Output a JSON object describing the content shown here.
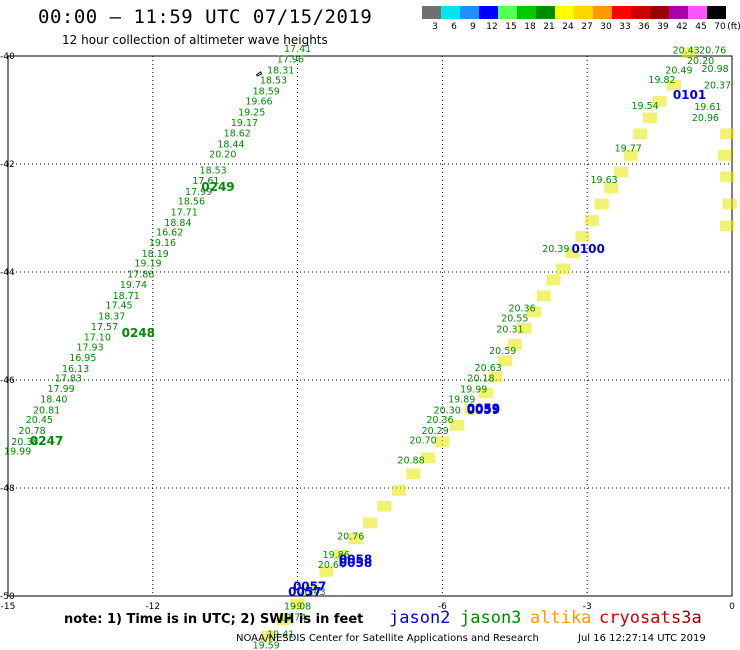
{
  "header": {
    "title": "00:00 – 11:59 UTC 07/15/2019",
    "subtitle": "12 hour collection of altimeter wave heights"
  },
  "colorbar": {
    "unit": "(ft)",
    "bins": [
      {
        "label": "3",
        "color": "#707070"
      },
      {
        "label": "6",
        "color": "#00e5ee"
      },
      {
        "label": "9",
        "color": "#1e90ff"
      },
      {
        "label": "12",
        "color": "#0000ff"
      },
      {
        "label": "15",
        "color": "#55ff55"
      },
      {
        "label": "18",
        "color": "#00c800"
      },
      {
        "label": "21",
        "color": "#008c00"
      },
      {
        "label": "24",
        "color": "#ffff00"
      },
      {
        "label": "27",
        "color": "#ffd700"
      },
      {
        "label": "30",
        "color": "#ff9900"
      },
      {
        "label": "33",
        "color": "#ff0000"
      },
      {
        "label": "36",
        "color": "#cc0000"
      },
      {
        "label": "39",
        "color": "#990000"
      },
      {
        "label": "42",
        "color": "#aa00aa"
      },
      {
        "label": "45",
        "color": "#ff55ff"
      },
      {
        "label": "70",
        "color": "#000000"
      }
    ]
  },
  "axes": {
    "lon_labels": [
      "-15",
      "-12",
      "-9",
      "-6",
      "-3",
      "0"
    ],
    "lat_labels": [
      "-40",
      "-42",
      "-44",
      "-46",
      "-48",
      "-50"
    ]
  },
  "pass_times": [
    {
      "text": "0249",
      "sat": "jason3",
      "lon": -10.65,
      "lat": -42.5
    },
    {
      "text": "0248",
      "sat": "jason3",
      "lon": -12.3,
      "lat": -45.2
    },
    {
      "text": "0247",
      "sat": "jason3",
      "lon": -14.2,
      "lat": -47.2
    },
    {
      "text": "0100",
      "sat": "jason2",
      "lon": -2.98,
      "lat": -43.65
    },
    {
      "text": "0101",
      "sat": "jason2",
      "lon": -0.88,
      "lat": -40.8
    },
    {
      "text": "0059",
      "sat": "jason2",
      "lon": -5.15,
      "lat": -46.6
    },
    {
      "text": "0059",
      "sat": "jason2",
      "lon": -5.15,
      "lat": -46.63
    },
    {
      "text": "0058",
      "sat": "jason2",
      "lon": -7.8,
      "lat": -49.4
    },
    {
      "text": "0058",
      "sat": "jason2",
      "lon": -7.8,
      "lat": -49.46
    },
    {
      "text": "0057",
      "sat": "jason2",
      "lon": -8.75,
      "lat": -49.9
    },
    {
      "text": "0057",
      "sat": "jason2",
      "lon": -8.85,
      "lat": -50.0
    }
  ],
  "green_track": [
    {
      "v": "17.41",
      "lon": -9.0,
      "lat": -39.93
    },
    {
      "v": "17.96",
      "lon": -9.15,
      "lat": -40.12
    },
    {
      "v": "18.31",
      "lon": -9.35,
      "lat": -40.32
    },
    {
      "v": "18.53",
      "lon": -9.5,
      "lat": -40.51
    },
    {
      "v": "18.59",
      "lon": -9.65,
      "lat": -40.71
    },
    {
      "v": "19.66",
      "lon": -9.8,
      "lat": -40.9
    },
    {
      "v": "19.25",
      "lon": -9.95,
      "lat": -41.1
    },
    {
      "v": "19.17",
      "lon": -10.1,
      "lat": -41.3
    },
    {
      "v": "18.62",
      "lon": -10.25,
      "lat": -41.49
    },
    {
      "v": "18.44",
      "lon": -10.38,
      "lat": -41.69
    },
    {
      "v": "20.20",
      "lon": -10.55,
      "lat": -41.88
    },
    {
      "v": "18.53",
      "lon": -10.75,
      "lat": -42.18
    },
    {
      "v": "17.61",
      "lon": -10.9,
      "lat": -42.37
    },
    {
      "v": "17.99",
      "lon": -11.05,
      "lat": -42.57
    },
    {
      "v": "18.56",
      "lon": -11.2,
      "lat": -42.75
    },
    {
      "v": "17.71",
      "lon": -11.35,
      "lat": -42.95
    },
    {
      "v": "18.84",
      "lon": -11.48,
      "lat": -43.15
    },
    {
      "v": "16.62",
      "lon": -11.65,
      "lat": -43.32
    },
    {
      "v": "19.16",
      "lon": -11.8,
      "lat": -43.52
    },
    {
      "v": "18.19",
      "lon": -11.95,
      "lat": -43.72
    },
    {
      "v": "19.19",
      "lon": -12.1,
      "lat": -43.9
    },
    {
      "v": "17.86",
      "lon": -12.25,
      "lat": -44.1
    },
    {
      "v": "19.74",
      "lon": -12.4,
      "lat": -44.3
    },
    {
      "v": "18.71",
      "lon": -12.55,
      "lat": -44.5
    },
    {
      "v": "17.45",
      "lon": -12.7,
      "lat": -44.68
    },
    {
      "v": "18.37",
      "lon": -12.85,
      "lat": -44.88
    },
    {
      "v": "17.57",
      "lon": -13.0,
      "lat": -45.07
    },
    {
      "v": "17.10",
      "lon": -13.15,
      "lat": -45.27
    },
    {
      "v": "17.93",
      "lon": -13.3,
      "lat": -45.45
    },
    {
      "v": "16.95",
      "lon": -13.45,
      "lat": -45.65
    },
    {
      "v": "16.13",
      "lon": -13.6,
      "lat": -45.85
    },
    {
      "v": "17.83",
      "lon": -13.75,
      "lat": -46.03
    },
    {
      "v": "17.99",
      "lon": -13.9,
      "lat": -46.22
    },
    {
      "v": "18.40",
      "lon": -14.05,
      "lat": -46.42
    },
    {
      "v": "20.81",
      "lon": -14.2,
      "lat": -46.62
    },
    {
      "v": "20.45",
      "lon": -14.35,
      "lat": -46.8
    },
    {
      "v": "20.78",
      "lon": -14.5,
      "lat": -47.0
    },
    {
      "v": "20.38",
      "lon": -14.65,
      "lat": -47.2
    },
    {
      "v": "19.99",
      "lon": -14.8,
      "lat": -47.38
    }
  ],
  "jason2_track": [
    {
      "v": "20.43",
      "lon": -0.95,
      "lat": -39.95
    },
    {
      "v": "20.76",
      "lon": -0.4,
      "lat": -39.95
    },
    {
      "v": "20.20",
      "lon": -0.65,
      "lat": -40.15
    },
    {
      "v": "20.49",
      "lon": -1.1,
      "lat": -40.32
    },
    {
      "v": "20.98",
      "lon": -0.35,
      "lat": -40.3
    },
    {
      "v": "19.82",
      "lon": -1.45,
      "lat": -40.5
    },
    {
      "v": "20.37",
      "lon": -0.3,
      "lat": -40.6
    },
    {
      "v": "19.54",
      "lon": -1.8,
      "lat": -40.98
    },
    {
      "v": "19.61",
      "lon": -0.5,
      "lat": -41.0
    },
    {
      "v": "20.96",
      "lon": -0.55,
      "lat": -41.2
    },
    {
      "v": "19.77",
      "lon": -2.15,
      "lat": -41.77
    },
    {
      "v": "19.63",
      "lon": -2.65,
      "lat": -42.35
    },
    {
      "v": "20.39",
      "lon": -3.65,
      "lat": -43.63
    },
    {
      "v": "20.36",
      "lon": -4.35,
      "lat": -44.73
    },
    {
      "v": "20.55",
      "lon": -4.5,
      "lat": -44.92
    },
    {
      "v": "20.31",
      "lon": -4.6,
      "lat": -45.12
    },
    {
      "v": "20.59",
      "lon": -4.75,
      "lat": -45.52
    },
    {
      "v": "20.63",
      "lon": -5.05,
      "lat": -45.83
    },
    {
      "v": "20.18",
      "lon": -5.2,
      "lat": -46.03
    },
    {
      "v": "19.99",
      "lon": -5.35,
      "lat": -46.23
    },
    {
      "v": "19.89",
      "lon": -5.6,
      "lat": -46.42
    },
    {
      "v": "20.30",
      "lon": -5.9,
      "lat": -46.62
    },
    {
      "v": "20.36",
      "lon": -6.05,
      "lat": -46.8
    },
    {
      "v": "20.29",
      "lon": -6.15,
      "lat": -47.0
    },
    {
      "v": "20.70",
      "lon": -6.4,
      "lat": -47.18
    },
    {
      "v": "20.88",
      "lon": -6.65,
      "lat": -47.55
    },
    {
      "v": "20.76",
      "lon": -7.9,
      "lat": -48.95
    },
    {
      "v": "19.86",
      "lon": -8.2,
      "lat": -49.3
    },
    {
      "v": "20.64",
      "lon": -8.3,
      "lat": -49.48
    },
    {
      "v": "20.43",
      "lon": -8.7,
      "lat": -49.98
    },
    {
      "v": "19.08",
      "lon": -9.0,
      "lat": -50.25
    },
    {
      "v": "19.74",
      "lon": -9.1,
      "lat": -50.45
    },
    {
      "v": "19.41",
      "lon": -9.35,
      "lat": -50.77
    },
    {
      "v": "19.59",
      "lon": -9.65,
      "lat": -50.97
    }
  ],
  "yellow_track": [
    {
      "lon": -0.9,
      "lat": -40.0
    },
    {
      "lon": -1.2,
      "lat": -40.6
    },
    {
      "lon": -1.5,
      "lat": -40.9
    },
    {
      "lon": -1.7,
      "lat": -41.2
    },
    {
      "lon": -1.9,
      "lat": -41.5
    },
    {
      "lon": -2.1,
      "lat": -41.9
    },
    {
      "lon": -2.3,
      "lat": -42.2
    },
    {
      "lon": -2.5,
      "lat": -42.5
    },
    {
      "lon": -2.7,
      "lat": -42.8
    },
    {
      "lon": -2.9,
      "lat": -43.1
    },
    {
      "lon": -3.1,
      "lat": -43.4
    },
    {
      "lon": -3.3,
      "lat": -43.7
    },
    {
      "lon": -3.5,
      "lat": -44.0
    },
    {
      "lon": -3.7,
      "lat": -44.2
    },
    {
      "lon": -3.9,
      "lat": -44.5
    },
    {
      "lon": -4.1,
      "lat": -44.8
    },
    {
      "lon": -4.3,
      "lat": -45.1
    },
    {
      "lon": -4.5,
      "lat": -45.4
    },
    {
      "lon": -4.7,
      "lat": -45.7
    },
    {
      "lon": -4.9,
      "lat": -46.0
    },
    {
      "lon": -5.1,
      "lat": -46.3
    },
    {
      "lon": -5.4,
      "lat": -46.6
    },
    {
      "lon": -5.7,
      "lat": -46.9
    },
    {
      "lon": -6.0,
      "lat": -47.2
    },
    {
      "lon": -6.3,
      "lat": -47.5
    },
    {
      "lon": -6.6,
      "lat": -47.8
    },
    {
      "lon": -6.9,
      "lat": -48.1
    },
    {
      "lon": -7.2,
      "lat": -48.4
    },
    {
      "lon": -7.5,
      "lat": -48.7
    },
    {
      "lon": -7.8,
      "lat": -49.0
    },
    {
      "lon": -8.1,
      "lat": -49.3
    },
    {
      "lon": -8.4,
      "lat": -49.6
    },
    {
      "lon": -8.7,
      "lat": -49.9
    },
    {
      "lon": -9.0,
      "lat": -50.2
    },
    {
      "lon": -9.3,
      "lat": -50.5
    },
    {
      "lon": -9.6,
      "lat": -50.8
    },
    {
      "lon": -0.1,
      "lat": -41.5
    },
    {
      "lon": -0.15,
      "lat": -41.9
    },
    {
      "lon": -0.1,
      "lat": -42.3
    },
    {
      "lon": -0.05,
      "lat": -42.8
    },
    {
      "lon": -0.1,
      "lat": -43.2
    }
  ],
  "footer": {
    "note": "note: 1) Time is in UTC; 2) SWH is in feet",
    "legend": [
      {
        "label": "jason2",
        "color": "#0000ee"
      },
      {
        "label": "jason3",
        "color": "#008c00"
      },
      {
        "label": "altika",
        "color": "#ff9900"
      },
      {
        "label": "cryosat",
        "color": "#cc0000"
      },
      {
        "label": "s3a",
        "color": "#990000"
      }
    ],
    "credit": "NOAA/NESDIS Center for Satellite Applications and Research",
    "timestamp": "Jul 16 12:27:14 UTC 2019"
  }
}
